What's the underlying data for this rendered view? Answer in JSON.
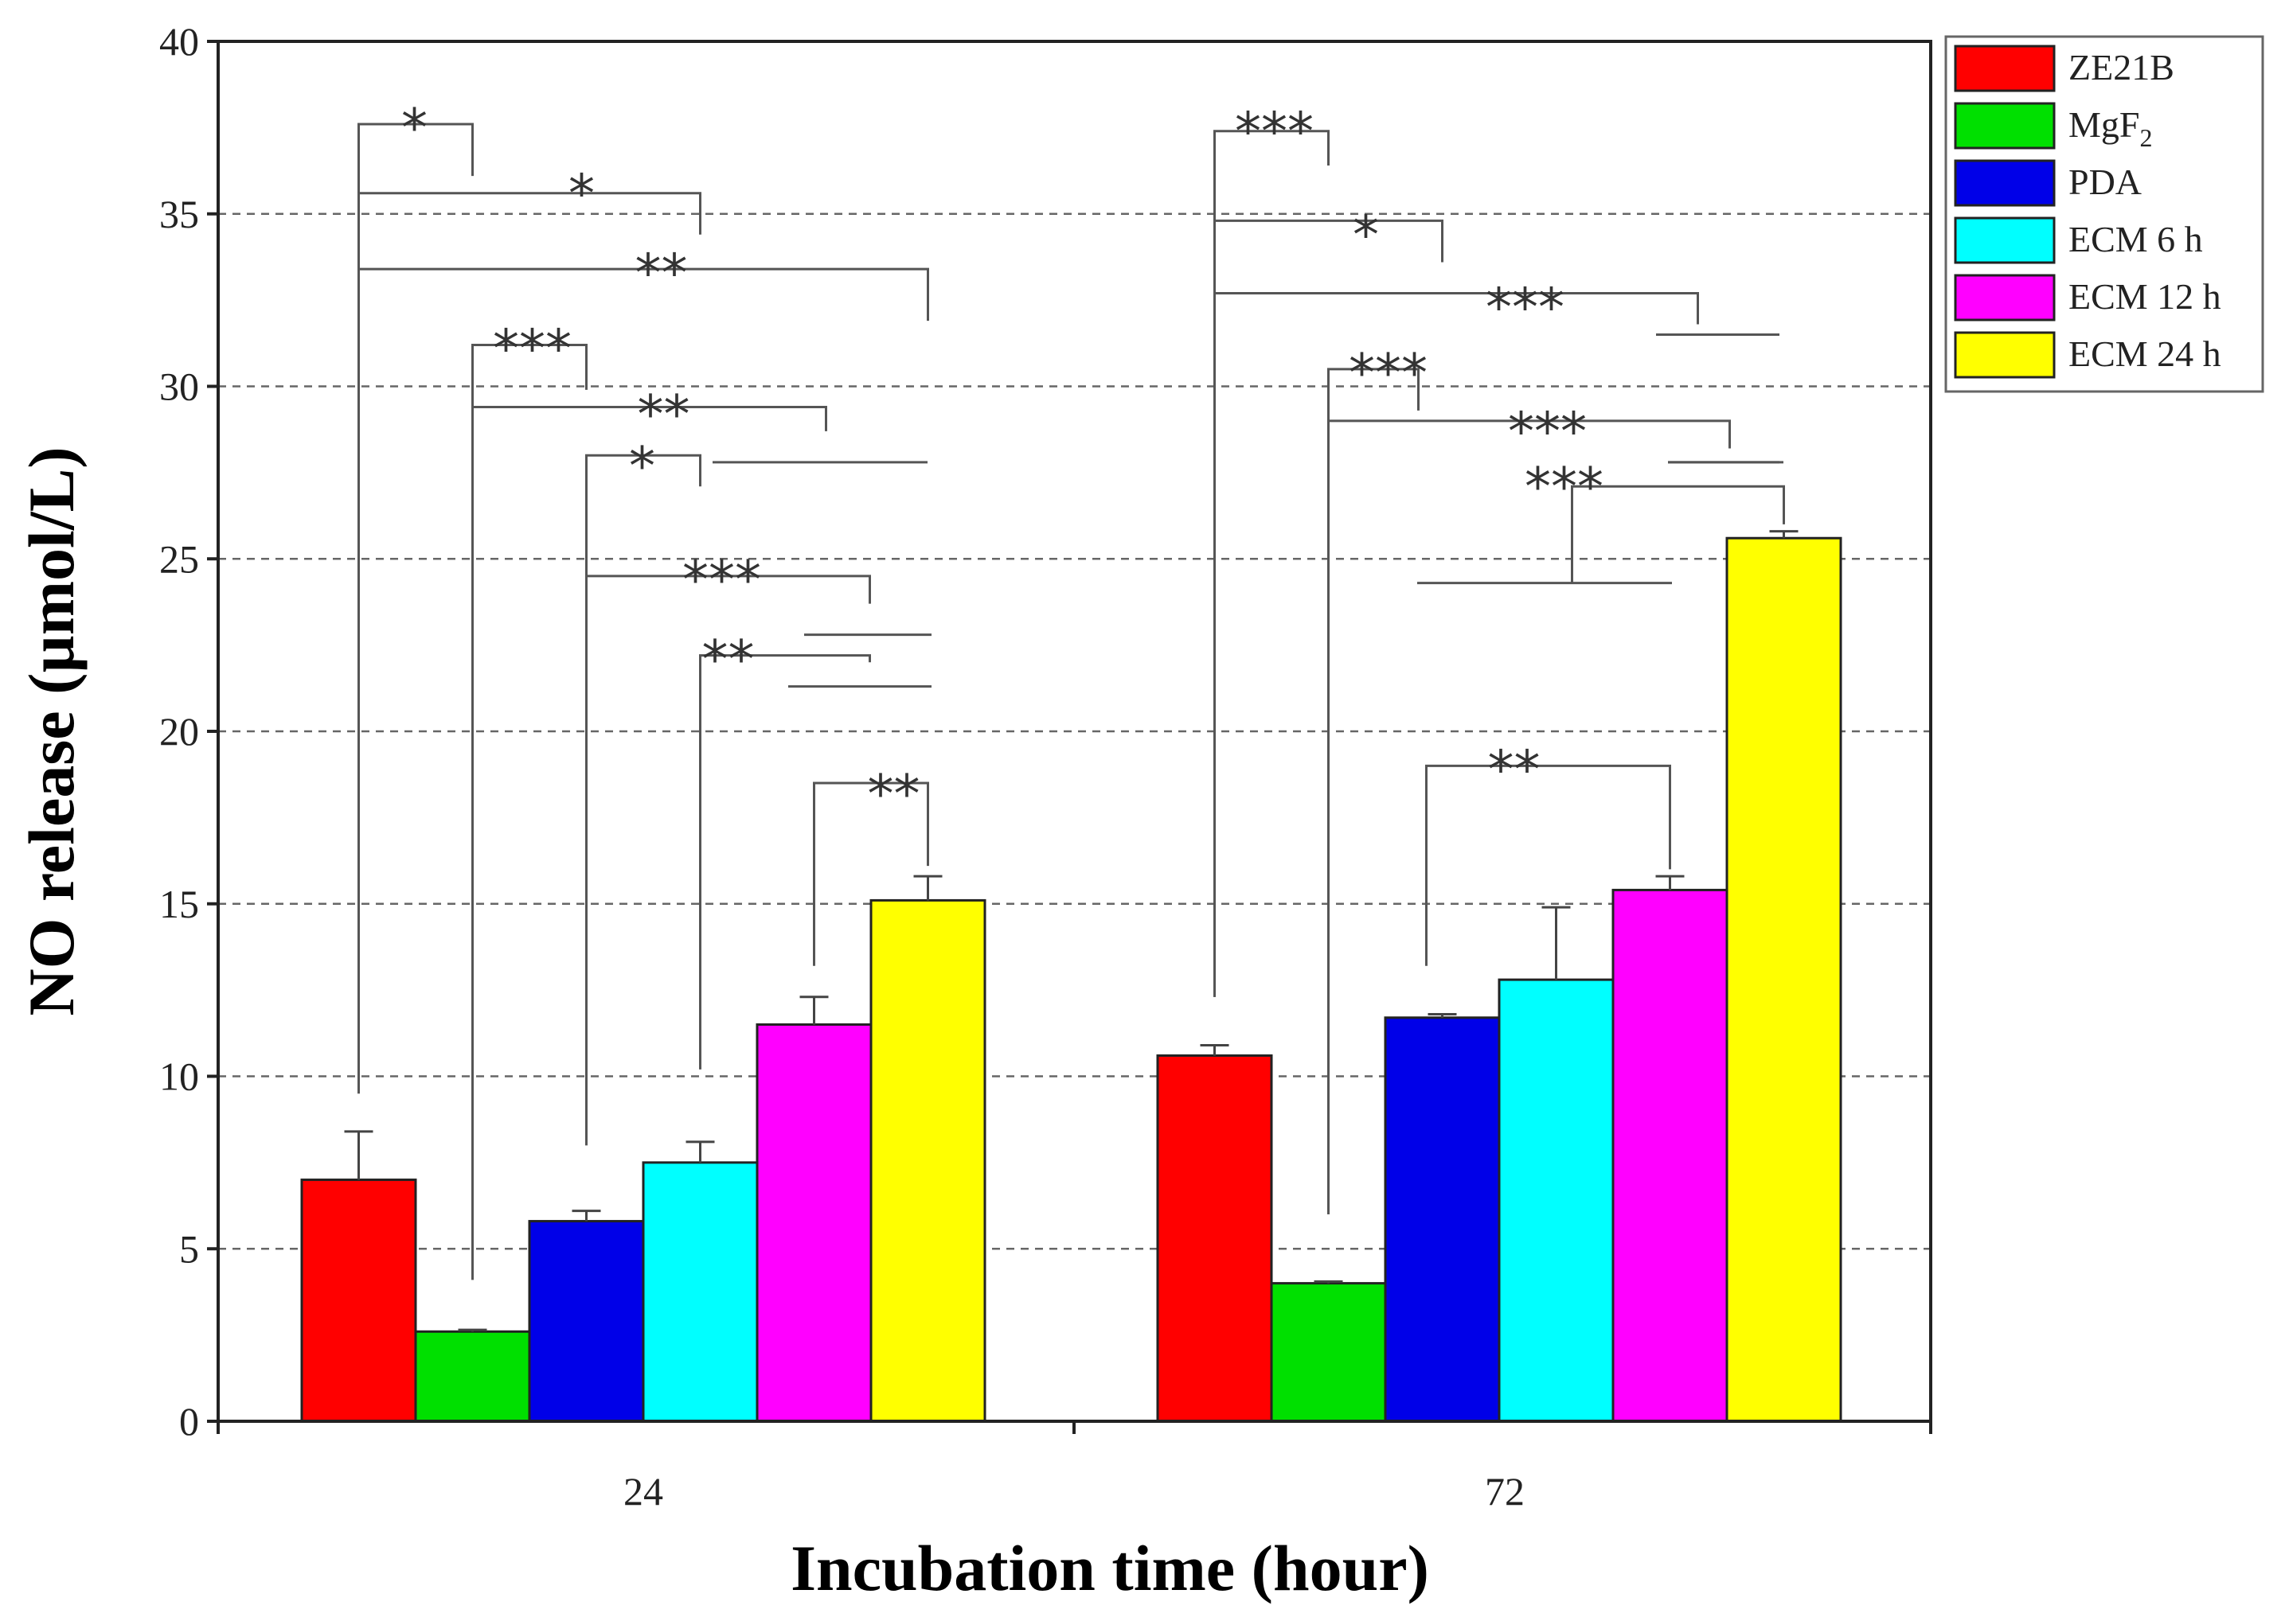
{
  "chart_data": {
    "type": "bar",
    "xlabel": "Incubation time (hour)",
    "ylabel": "NO release (µmol/L)",
    "ylim": [
      0,
      40
    ],
    "yticks": [
      "0",
      "5",
      "10",
      "15",
      "20",
      "25",
      "30",
      "35",
      "40"
    ],
    "grid": "horizontal dashed",
    "legend_position": "top-right",
    "categories": [
      "24",
      "72"
    ],
    "series": [
      {
        "name": "ZE21B",
        "color": "#ff0000",
        "values": [
          7.0,
          10.6
        ],
        "errors": [
          1.4,
          0.3
        ]
      },
      {
        "name": "MgF2",
        "legend_main": "MgF",
        "legend_sub": "2",
        "color": "#00e000",
        "values": [
          2.6,
          4.0
        ],
        "errors": [
          0.05,
          0.05
        ]
      },
      {
        "name": "PDA",
        "color": "#0000e8",
        "values": [
          5.8,
          11.7
        ],
        "errors": [
          0.3,
          0.1
        ]
      },
      {
        "name": "ECM 6 h",
        "color": "#00ffff",
        "values": [
          7.5,
          12.8
        ],
        "errors": [
          0.6,
          2.1
        ]
      },
      {
        "name": "ECM 12 h",
        "color": "#ff00ff",
        "values": [
          11.5,
          15.4
        ],
        "errors": [
          0.8,
          0.4
        ]
      },
      {
        "name": "ECM 24 h",
        "color": "#ffff00",
        "values": [
          15.1,
          25.6
        ],
        "errors": [
          0.7,
          0.2
        ]
      }
    ],
    "significance": [
      {
        "label": "*",
        "group": "24",
        "from": "ZE21B",
        "to": "MgF2"
      },
      {
        "label": "*",
        "group": "24",
        "from": "ZE21B",
        "to": "ECM 6 h"
      },
      {
        "label": "**",
        "group": "24",
        "from": "ZE21B",
        "to": "ECM 24 h"
      },
      {
        "label": "***",
        "group": "24",
        "from": "MgF2",
        "to": "PDA"
      },
      {
        "label": "**",
        "group": "24",
        "from": "MgF2",
        "to": "ECM 12 h / ECM 24 h"
      },
      {
        "label": "*",
        "group": "24",
        "from": "PDA",
        "to": "ECM 6 h"
      },
      {
        "label": "***",
        "group": "24",
        "from": "PDA",
        "to": "ECM 12 h / ECM 24 h"
      },
      {
        "label": "**",
        "group": "24",
        "from": "ECM 6 h",
        "to": "ECM 12 h / ECM 24 h"
      },
      {
        "label": "**",
        "group": "24",
        "from": "ECM 12 h",
        "to": "ECM 24 h"
      },
      {
        "label": "***",
        "group": "72",
        "from": "ZE21B",
        "to": "MgF2"
      },
      {
        "label": "*",
        "group": "72",
        "from": "ZE21B",
        "to": "PDA"
      },
      {
        "label": "***",
        "group": "72",
        "from": "ZE21B",
        "to": "ECM 12 h / ECM 24 h"
      },
      {
        "label": "***",
        "group": "72",
        "from": "MgF2",
        "to": "PDA"
      },
      {
        "label": "***",
        "group": "72",
        "from": "MgF2",
        "to": "ECM 12 h / ECM 24 h"
      },
      {
        "label": "***",
        "group": "72",
        "from": "ECM 6 h / ECM 12 h",
        "to": "ECM 24 h"
      },
      {
        "label": "**",
        "group": "72",
        "from": "PDA",
        "to": "ECM 12 h"
      }
    ]
  }
}
